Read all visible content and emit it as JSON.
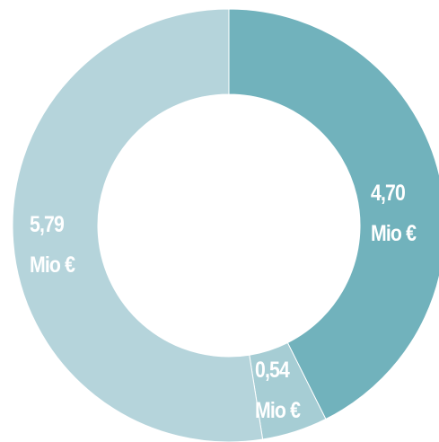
{
  "chart_data": {
    "type": "donut",
    "categories": [
      null,
      null,
      null
    ],
    "values": [
      4.7,
      0.54,
      5.79
    ],
    "value_labels": [
      "4,70\nMio €",
      "0,54\nMio €",
      "5,79\nMio €"
    ],
    "colors": [
      "#71b2bc",
      "#a6cdd4",
      "#b5d4db"
    ]
  }
}
